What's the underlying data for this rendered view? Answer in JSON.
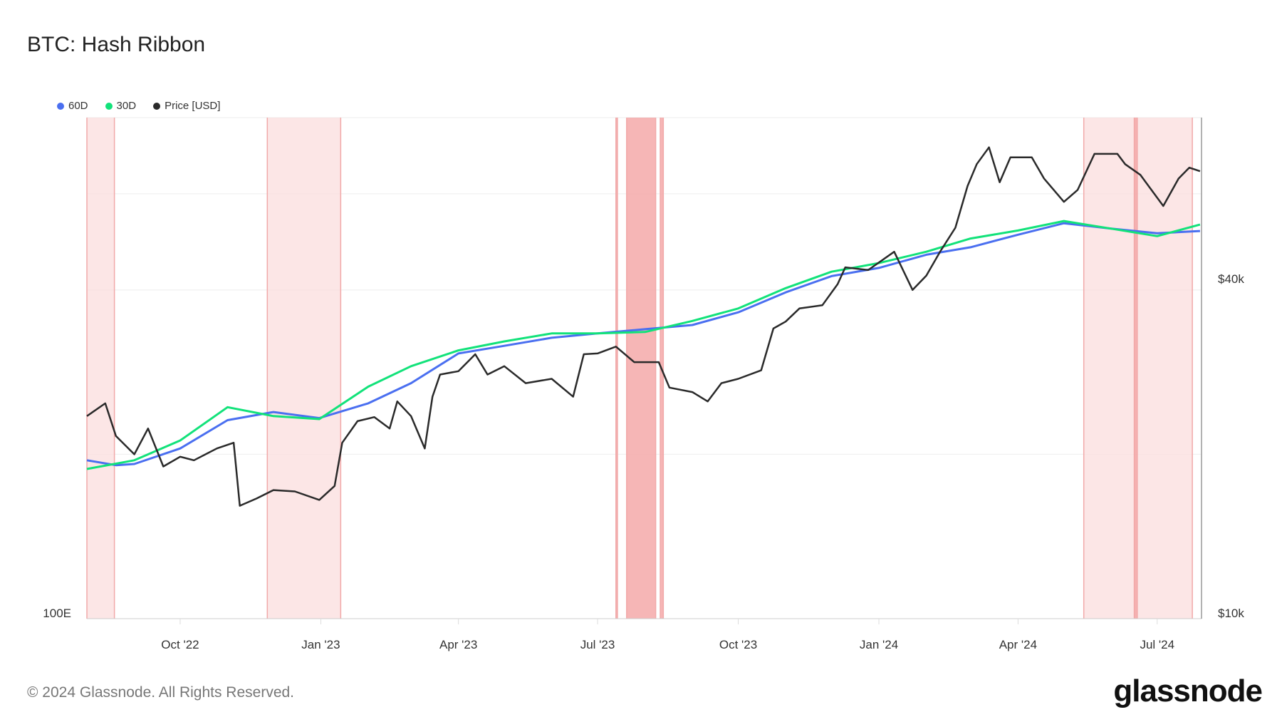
{
  "title": "BTC: Hash Ribbon",
  "footer": "© 2024 Glassnode. All Rights Reserved.",
  "logo": "glassnode",
  "legend": [
    {
      "label": "60D",
      "color": "#4a6ff0"
    },
    {
      "label": "30D",
      "color": "#12e27a"
    },
    {
      "label": "Price [USD]",
      "color": "#2a2a2a"
    }
  ],
  "chart_data": {
    "type": "line",
    "title": "BTC: Hash Ribbon",
    "x_range": [
      "2022-08-01",
      "2024-07-30"
    ],
    "x_ticks": [
      {
        "date": "2022-10-01",
        "label": "Oct '22"
      },
      {
        "date": "2023-01-01",
        "label": "Jan '23"
      },
      {
        "date": "2023-04-01",
        "label": "Apr '23"
      },
      {
        "date": "2023-07-01",
        "label": "Jul '23"
      },
      {
        "date": "2023-10-01",
        "label": "Oct '23"
      },
      {
        "date": "2024-01-01",
        "label": "Jan '24"
      },
      {
        "date": "2024-04-01",
        "label": "Apr '24"
      },
      {
        "date": "2024-07-01",
        "label": "Jul '24"
      }
    ],
    "left_axis": {
      "scale": "log",
      "unit": "EH/s",
      "min": 100,
      "ticks": [
        {
          "value": 100,
          "label": "100E"
        }
      ]
    },
    "right_axis": {
      "scale": "log",
      "unit": "USD",
      "min": 10000,
      "ticks": [
        {
          "value": 10000,
          "label": "$10k"
        },
        {
          "value": 40000,
          "label": "$40k"
        }
      ]
    },
    "gridlines_usd": [
      20000,
      40000,
      60000
    ],
    "capitulation_bands": [
      {
        "start": "2022-08-01",
        "end": "2022-08-19",
        "strong": false
      },
      {
        "start": "2022-11-27",
        "end": "2023-01-14",
        "strong": false
      },
      {
        "start": "2023-07-13",
        "end": "2023-07-14",
        "strong": true
      },
      {
        "start": "2023-07-20",
        "end": "2023-08-08",
        "strong": true
      },
      {
        "start": "2023-08-11",
        "end": "2023-08-13",
        "strong": true
      },
      {
        "start": "2024-05-14",
        "end": "2024-07-24",
        "strong": false
      },
      {
        "start": "2024-06-16",
        "end": "2024-06-18",
        "strong": true
      }
    ],
    "series": [
      {
        "name": "60D",
        "axis": "left",
        "color": "#4a6ff0",
        "points": [
          [
            "2022-08-01",
            195
          ],
          [
            "2022-08-20",
            191
          ],
          [
            "2022-09-01",
            192
          ],
          [
            "2022-10-01",
            205
          ],
          [
            "2022-11-01",
            231
          ],
          [
            "2022-12-01",
            239
          ],
          [
            "2022-12-31",
            233
          ],
          [
            "2023-02-01",
            248
          ],
          [
            "2023-03-01",
            270
          ],
          [
            "2023-04-01",
            306
          ],
          [
            "2023-05-01",
            316
          ],
          [
            "2023-06-01",
            327
          ],
          [
            "2023-07-01",
            333
          ],
          [
            "2023-08-01",
            339
          ],
          [
            "2023-09-01",
            345
          ],
          [
            "2023-10-01",
            364
          ],
          [
            "2023-11-01",
            396
          ],
          [
            "2023-12-01",
            424
          ],
          [
            "2024-01-01",
            439
          ],
          [
            "2024-02-01",
            464
          ],
          [
            "2024-03-01",
            479
          ],
          [
            "2024-04-01",
            505
          ],
          [
            "2024-05-01",
            530
          ],
          [
            "2024-06-01",
            518
          ],
          [
            "2024-07-01",
            508
          ],
          [
            "2024-07-29",
            513
          ]
        ]
      },
      {
        "name": "30D",
        "axis": "left",
        "color": "#12e27a",
        "points": [
          [
            "2022-08-01",
            188
          ],
          [
            "2022-09-01",
            195
          ],
          [
            "2022-10-01",
            212
          ],
          [
            "2022-11-01",
            244
          ],
          [
            "2022-12-01",
            235
          ],
          [
            "2022-12-31",
            232
          ],
          [
            "2023-02-01",
            266
          ],
          [
            "2023-03-01",
            290
          ],
          [
            "2023-04-01",
            310
          ],
          [
            "2023-05-01",
            322
          ],
          [
            "2023-06-01",
            333
          ],
          [
            "2023-07-01",
            333
          ],
          [
            "2023-08-01",
            335
          ],
          [
            "2023-09-01",
            351
          ],
          [
            "2023-10-01",
            370
          ],
          [
            "2023-11-01",
            403
          ],
          [
            "2023-12-01",
            432
          ],
          [
            "2024-01-01",
            448
          ],
          [
            "2024-02-01",
            470
          ],
          [
            "2024-03-01",
            497
          ],
          [
            "2024-04-01",
            514
          ],
          [
            "2024-05-01",
            535
          ],
          [
            "2024-06-01",
            518
          ],
          [
            "2024-07-01",
            502
          ],
          [
            "2024-07-29",
            527
          ]
        ]
      },
      {
        "name": "Price [USD]",
        "axis": "right",
        "color": "#2a2a2a",
        "points": [
          [
            "2022-08-01",
            23500
          ],
          [
            "2022-08-13",
            24800
          ],
          [
            "2022-08-20",
            21600
          ],
          [
            "2022-09-01",
            20000
          ],
          [
            "2022-09-10",
            22300
          ],
          [
            "2022-09-20",
            19000
          ],
          [
            "2022-10-01",
            19800
          ],
          [
            "2022-10-10",
            19500
          ],
          [
            "2022-10-25",
            20500
          ],
          [
            "2022-11-05",
            21000
          ],
          [
            "2022-11-09",
            16100
          ],
          [
            "2022-11-20",
            16600
          ],
          [
            "2022-12-01",
            17200
          ],
          [
            "2022-12-15",
            17100
          ],
          [
            "2022-12-31",
            16500
          ],
          [
            "2023-01-10",
            17500
          ],
          [
            "2023-01-15",
            21000
          ],
          [
            "2023-01-25",
            23000
          ],
          [
            "2023-02-05",
            23400
          ],
          [
            "2023-02-15",
            22300
          ],
          [
            "2023-02-20",
            25000
          ],
          [
            "2023-03-01",
            23500
          ],
          [
            "2023-03-10",
            20500
          ],
          [
            "2023-03-15",
            25500
          ],
          [
            "2023-03-20",
            28000
          ],
          [
            "2023-04-01",
            28400
          ],
          [
            "2023-04-12",
            30500
          ],
          [
            "2023-04-20",
            28000
          ],
          [
            "2023-05-01",
            29000
          ],
          [
            "2023-05-15",
            27000
          ],
          [
            "2023-06-01",
            27500
          ],
          [
            "2023-06-15",
            25500
          ],
          [
            "2023-06-22",
            30500
          ],
          [
            "2023-07-01",
            30600
          ],
          [
            "2023-07-13",
            31500
          ],
          [
            "2023-07-25",
            29500
          ],
          [
            "2023-08-10",
            29500
          ],
          [
            "2023-08-17",
            26500
          ],
          [
            "2023-09-01",
            26000
          ],
          [
            "2023-09-11",
            25000
          ],
          [
            "2023-09-20",
            27000
          ],
          [
            "2023-10-01",
            27500
          ],
          [
            "2023-10-16",
            28500
          ],
          [
            "2023-10-24",
            34000
          ],
          [
            "2023-11-01",
            35000
          ],
          [
            "2023-11-10",
            37000
          ],
          [
            "2023-11-25",
            37500
          ],
          [
            "2023-12-05",
            41000
          ],
          [
            "2023-12-10",
            44000
          ],
          [
            "2023-12-25",
            43500
          ],
          [
            "2024-01-11",
            47000
          ],
          [
            "2024-01-23",
            40000
          ],
          [
            "2024-02-01",
            42500
          ],
          [
            "2024-02-10",
            47000
          ],
          [
            "2024-02-20",
            52000
          ],
          [
            "2024-02-28",
            62000
          ],
          [
            "2024-03-05",
            68000
          ],
          [
            "2024-03-13",
            73000
          ],
          [
            "2024-03-20",
            63000
          ],
          [
            "2024-03-27",
            70000
          ],
          [
            "2024-04-10",
            70000
          ],
          [
            "2024-04-18",
            64000
          ],
          [
            "2024-05-01",
            58000
          ],
          [
            "2024-05-10",
            61000
          ],
          [
            "2024-05-21",
            71000
          ],
          [
            "2024-06-05",
            71000
          ],
          [
            "2024-06-10",
            68000
          ],
          [
            "2024-06-20",
            65000
          ],
          [
            "2024-07-05",
            57000
          ],
          [
            "2024-07-15",
            64000
          ],
          [
            "2024-07-22",
            67000
          ],
          [
            "2024-07-29",
            66000
          ]
        ]
      }
    ]
  }
}
